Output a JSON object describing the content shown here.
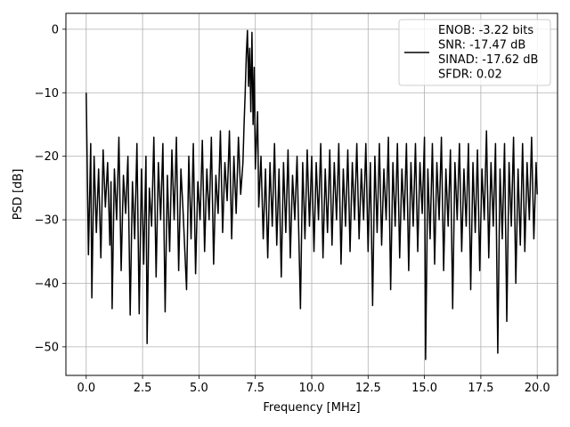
{
  "chart_data": {
    "type": "line",
    "xlabel": "Frequency [MHz]",
    "ylabel": "PSD [dB]",
    "xlim": [
      -0.9,
      20.9
    ],
    "ylim": [
      -54.5,
      2.5
    ],
    "xticks": [
      0.0,
      2.5,
      5.0,
      7.5,
      10.0,
      12.5,
      15.0,
      17.5,
      20.0
    ],
    "xtick_labels": [
      "0.0",
      "2.5",
      "5.0",
      "7.5",
      "10.0",
      "12.5",
      "15.0",
      "17.5",
      "20.0"
    ],
    "yticks": [
      0,
      -10,
      -20,
      -30,
      -40,
      -50
    ],
    "ytick_labels": [
      "0",
      "−10",
      "−20",
      "−30",
      "−40",
      "−50"
    ],
    "grid": true,
    "legend_position": "top-right",
    "legend_lines": [
      "ENOB: -3.22 bits",
      "SNR: -17.47 dB",
      "SINAD: -17.62 dB",
      "SFDR: 0.02"
    ],
    "line_color": "#000000",
    "series": [
      {
        "points": [
          [
            0.0,
            -10.0
          ],
          [
            0.1,
            -35.5
          ],
          [
            0.2,
            -18.0
          ],
          [
            0.25,
            -42.3
          ],
          [
            0.35,
            -20.0
          ],
          [
            0.45,
            -32.0
          ],
          [
            0.55,
            -22.0
          ],
          [
            0.65,
            -36.0
          ],
          [
            0.75,
            -19.0
          ],
          [
            0.85,
            -28.0
          ],
          [
            0.95,
            -21.0
          ],
          [
            1.05,
            -34.0
          ],
          [
            1.1,
            -24.0
          ],
          [
            1.15,
            -44.0
          ],
          [
            1.25,
            -22.0
          ],
          [
            1.35,
            -30.0
          ],
          [
            1.45,
            -17.0
          ],
          [
            1.55,
            -38.0
          ],
          [
            1.65,
            -23.0
          ],
          [
            1.75,
            -29.0
          ],
          [
            1.85,
            -20.0
          ],
          [
            1.95,
            -45.0
          ],
          [
            2.05,
            -24.0
          ],
          [
            2.15,
            -33.0
          ],
          [
            2.25,
            -18.0
          ],
          [
            2.35,
            -44.8
          ],
          [
            2.45,
            -22.0
          ],
          [
            2.55,
            -37.0
          ],
          [
            2.65,
            -20.0
          ],
          [
            2.7,
            -49.5
          ],
          [
            2.8,
            -25.0
          ],
          [
            2.9,
            -31.0
          ],
          [
            3.0,
            -17.0
          ],
          [
            3.1,
            -39.0
          ],
          [
            3.2,
            -21.0
          ],
          [
            3.3,
            -30.0
          ],
          [
            3.4,
            -18.0
          ],
          [
            3.5,
            -44.5
          ],
          [
            3.6,
            -23.0
          ],
          [
            3.7,
            -35.0
          ],
          [
            3.8,
            -19.0
          ],
          [
            3.9,
            -30.0
          ],
          [
            4.0,
            -17.0
          ],
          [
            4.1,
            -38.0
          ],
          [
            4.2,
            -22.0
          ],
          [
            4.3,
            -29.0
          ],
          [
            4.45,
            -41.0
          ],
          [
            4.55,
            -20.0
          ],
          [
            4.65,
            -33.0
          ],
          [
            4.75,
            -18.0
          ],
          [
            4.85,
            -38.5
          ],
          [
            4.95,
            -24.0
          ],
          [
            5.05,
            -30.0
          ],
          [
            5.15,
            -17.5
          ],
          [
            5.25,
            -35.0
          ],
          [
            5.35,
            -22.0
          ],
          [
            5.45,
            -30.0
          ],
          [
            5.55,
            -17.0
          ],
          [
            5.65,
            -37.0
          ],
          [
            5.75,
            -23.0
          ],
          [
            5.85,
            -29.0
          ],
          [
            5.95,
            -16.0
          ],
          [
            6.05,
            -32.0
          ],
          [
            6.15,
            -21.0
          ],
          [
            6.25,
            -27.0
          ],
          [
            6.35,
            -16.0
          ],
          [
            6.45,
            -33.0
          ],
          [
            6.55,
            -20.0
          ],
          [
            6.65,
            -29.0
          ],
          [
            6.75,
            -17.0
          ],
          [
            6.85,
            -26.0
          ],
          [
            6.95,
            -21.0
          ],
          [
            7.0,
            -15.0
          ],
          [
            7.05,
            -10.0
          ],
          [
            7.1,
            -4.0
          ],
          [
            7.15,
            -0.2
          ],
          [
            7.2,
            -9.0
          ],
          [
            7.25,
            -3.0
          ],
          [
            7.3,
            -13.0
          ],
          [
            7.35,
            -0.5
          ],
          [
            7.4,
            -15.0
          ],
          [
            7.45,
            -6.0
          ],
          [
            7.5,
            -22.0
          ],
          [
            7.6,
            -13.0
          ],
          [
            7.65,
            -28.0
          ],
          [
            7.75,
            -20.0
          ],
          [
            7.85,
            -33.0
          ],
          [
            7.95,
            -22.0
          ],
          [
            8.05,
            -36.0
          ],
          [
            8.15,
            -21.0
          ],
          [
            8.25,
            -31.0
          ],
          [
            8.35,
            -18.0
          ],
          [
            8.45,
            -34.0
          ],
          [
            8.55,
            -22.0
          ],
          [
            8.65,
            -39.0
          ],
          [
            8.75,
            -21.0
          ],
          [
            8.85,
            -32.0
          ],
          [
            8.95,
            -19.0
          ],
          [
            9.05,
            -36.0
          ],
          [
            9.15,
            -23.0
          ],
          [
            9.25,
            -30.0
          ],
          [
            9.35,
            -20.0
          ],
          [
            9.5,
            -44.0
          ],
          [
            9.6,
            -21.0
          ],
          [
            9.7,
            -33.0
          ],
          [
            9.8,
            -19.0
          ],
          [
            9.9,
            -31.0
          ],
          [
            10.0,
            -20.0
          ],
          [
            10.1,
            -35.0
          ],
          [
            10.2,
            -21.0
          ],
          [
            10.3,
            -30.0
          ],
          [
            10.4,
            -18.0
          ],
          [
            10.5,
            -36.0
          ],
          [
            10.6,
            -22.0
          ],
          [
            10.7,
            -32.0
          ],
          [
            10.8,
            -19.0
          ],
          [
            10.9,
            -34.0
          ],
          [
            11.0,
            -21.0
          ],
          [
            11.1,
            -30.0
          ],
          [
            11.2,
            -18.0
          ],
          [
            11.3,
            -37.0
          ],
          [
            11.4,
            -22.0
          ],
          [
            11.5,
            -31.0
          ],
          [
            11.6,
            -19.0
          ],
          [
            11.7,
            -35.0
          ],
          [
            11.8,
            -21.0
          ],
          [
            11.9,
            -30.0
          ],
          [
            12.0,
            -18.0
          ],
          [
            12.1,
            -33.0
          ],
          [
            12.2,
            -22.0
          ],
          [
            12.3,
            -30.0
          ],
          [
            12.4,
            -18.0
          ],
          [
            12.5,
            -35.0
          ],
          [
            12.6,
            -21.0
          ],
          [
            12.7,
            -43.5
          ],
          [
            12.8,
            -20.0
          ],
          [
            12.9,
            -32.0
          ],
          [
            13.0,
            -18.0
          ],
          [
            13.1,
            -34.0
          ],
          [
            13.2,
            -22.0
          ],
          [
            13.3,
            -30.0
          ],
          [
            13.4,
            -17.0
          ],
          [
            13.5,
            -41.0
          ],
          [
            13.6,
            -21.0
          ],
          [
            13.7,
            -31.0
          ],
          [
            13.8,
            -18.0
          ],
          [
            13.9,
            -36.0
          ],
          [
            14.0,
            -22.0
          ],
          [
            14.1,
            -30.0
          ],
          [
            14.2,
            -18.0
          ],
          [
            14.3,
            -38.0
          ],
          [
            14.4,
            -21.0
          ],
          [
            14.5,
            -31.0
          ],
          [
            14.6,
            -18.0
          ],
          [
            14.7,
            -35.0
          ],
          [
            14.8,
            -21.0
          ],
          [
            14.9,
            -29.0
          ],
          [
            15.0,
            -17.0
          ],
          [
            15.05,
            -52.0
          ],
          [
            15.15,
            -22.0
          ],
          [
            15.25,
            -33.0
          ],
          [
            15.35,
            -18.0
          ],
          [
            15.45,
            -37.0
          ],
          [
            15.55,
            -21.0
          ],
          [
            15.65,
            -30.0
          ],
          [
            15.75,
            -17.0
          ],
          [
            15.85,
            -38.0
          ],
          [
            15.95,
            -22.0
          ],
          [
            16.05,
            -31.0
          ],
          [
            16.15,
            -19.0
          ],
          [
            16.25,
            -44.0
          ],
          [
            16.35,
            -21.0
          ],
          [
            16.45,
            -30.0
          ],
          [
            16.55,
            -18.0
          ],
          [
            16.65,
            -35.0
          ],
          [
            16.75,
            -22.0
          ],
          [
            16.85,
            -31.0
          ],
          [
            16.95,
            -18.0
          ],
          [
            17.05,
            -41.0
          ],
          [
            17.15,
            -21.0
          ],
          [
            17.25,
            -32.0
          ],
          [
            17.35,
            -19.0
          ],
          [
            17.45,
            -38.0
          ],
          [
            17.55,
            -22.0
          ],
          [
            17.65,
            -30.0
          ],
          [
            17.75,
            -16.0
          ],
          [
            17.85,
            -36.0
          ],
          [
            17.95,
            -21.0
          ],
          [
            18.05,
            -31.0
          ],
          [
            18.15,
            -18.0
          ],
          [
            18.25,
            -51.0
          ],
          [
            18.35,
            -22.0
          ],
          [
            18.45,
            -33.0
          ],
          [
            18.55,
            -18.0
          ],
          [
            18.65,
            -46.0
          ],
          [
            18.75,
            -21.0
          ],
          [
            18.85,
            -31.0
          ],
          [
            18.95,
            -17.0
          ],
          [
            19.05,
            -40.0
          ],
          [
            19.15,
            -22.0
          ],
          [
            19.25,
            -34.0
          ],
          [
            19.35,
            -18.0
          ],
          [
            19.45,
            -35.0
          ],
          [
            19.55,
            -21.0
          ],
          [
            19.65,
            -30.0
          ],
          [
            19.75,
            -17.0
          ],
          [
            19.85,
            -33.0
          ],
          [
            19.95,
            -21.0
          ],
          [
            20.0,
            -26.0
          ]
        ]
      }
    ]
  }
}
